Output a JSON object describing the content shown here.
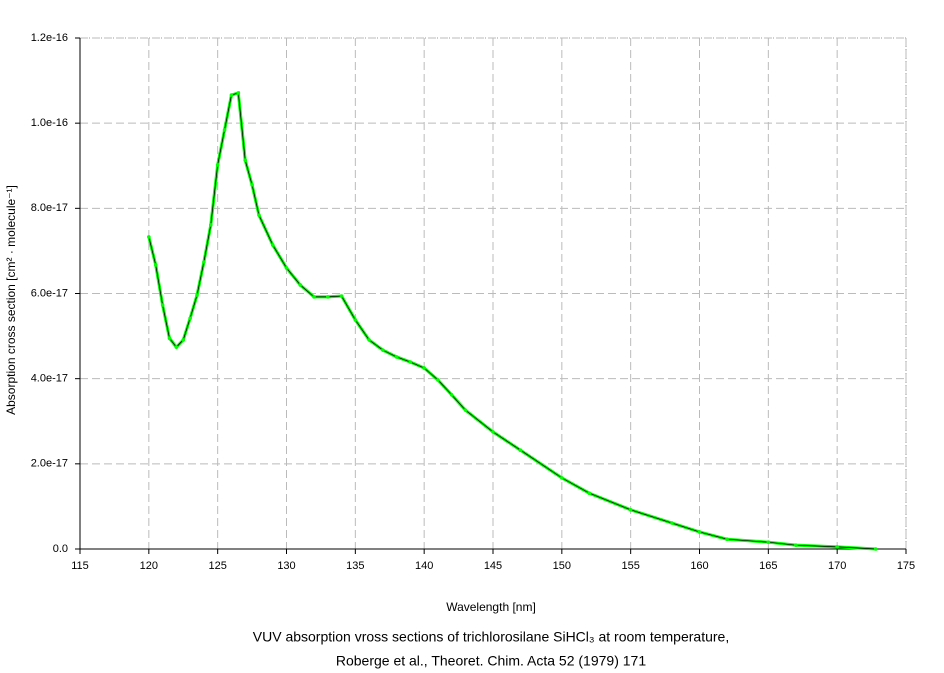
{
  "chart_data": {
    "type": "line",
    "title": [
      "VUV absorption vross sections of trichlorosilane SiHCl₃ at room temperature,",
      "Roberge et al., Theoret. Chim. Acta 52 (1979) 171"
    ],
    "x_label": "Wavelength [nm]",
    "y_label": "Absorption cross section [cm² · molecule⁻¹]",
    "x": [
      120,
      120.5,
      121,
      121.5,
      122,
      122.5,
      123,
      123.5,
      124,
      124.5,
      125,
      125.5,
      126,
      126.5,
      127,
      127.5,
      128,
      129,
      130,
      131,
      132,
      133,
      134,
      135,
      136,
      137,
      138,
      139,
      140,
      141,
      142,
      143,
      145,
      147,
      150,
      152,
      155,
      158,
      160,
      162,
      165,
      167,
      170,
      172.8
    ],
    "series": [
      {
        "name": "SiHCl3",
        "color": "#00ff00",
        "values": [
          7.33e-17,
          6.67e-17,
          5.73e-17,
          4.95e-17,
          4.74e-17,
          4.91e-17,
          5.42e-17,
          5.96e-17,
          6.74e-17,
          7.61e-17,
          9.02e-17,
          9.84e-17,
          1.066e-16,
          1.071e-16,
          9.13e-17,
          8.55e-17,
          7.84e-17,
          7.14e-17,
          6.6e-17,
          6.2e-17,
          5.92e-17,
          5.92e-17,
          5.94e-17,
          5.38e-17,
          4.91e-17,
          4.67e-17,
          4.51e-17,
          4.39e-17,
          4.25e-17,
          3.97e-17,
          3.62e-17,
          3.26e-17,
          2.75e-17,
          2.32e-17,
          1.67e-17,
          1.31e-17,
          9.2e-18,
          6.1e-18,
          4e-18,
          2.3e-18,
          1.6e-18,
          9e-19,
          5e-19,
          0
        ]
      }
    ],
    "xlim": [
      115,
      175
    ],
    "xticks": [
      115,
      120,
      125,
      130,
      135,
      140,
      145,
      150,
      155,
      160,
      165,
      170,
      175
    ],
    "ylim": [
      0,
      1.2e-16
    ],
    "yticks": [
      {
        "value": 0,
        "label": "0.0"
      },
      {
        "value": 2e-17,
        "label": "2.0e-17"
      },
      {
        "value": 4e-17,
        "label": "4.0e-17"
      },
      {
        "value": 6e-17,
        "label": "6.0e-17"
      },
      {
        "value": 8e-17,
        "label": "8.0e-17"
      },
      {
        "value": 1e-16,
        "label": "1.0e-16"
      },
      {
        "value": 1.2e-16,
        "label": "1.2e-16"
      }
    ],
    "grid": true
  }
}
